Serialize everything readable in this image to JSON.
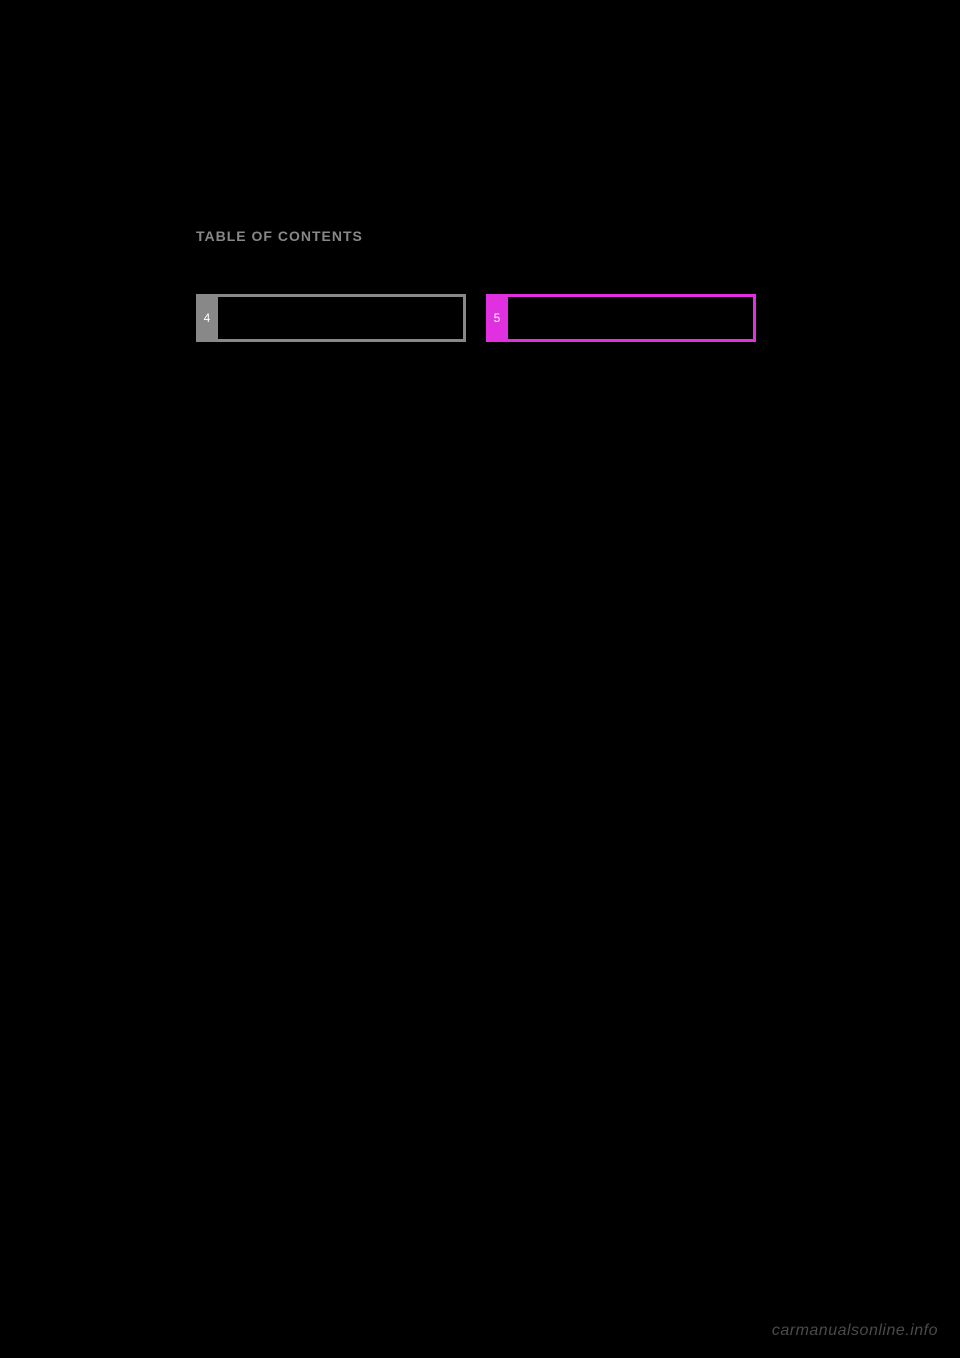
{
  "page": {
    "title": "TABLE OF CONTENTS",
    "background_color": "#000000",
    "title_color": "#888888",
    "title_fontsize": 14
  },
  "sections": [
    {
      "number": "4",
      "tab_color": "#888888",
      "border_color": "#888888",
      "text_color": "#ffffff"
    },
    {
      "number": "5",
      "tab_color": "#e030e0",
      "border_color": "#e030e0",
      "text_color": "#ffffff"
    }
  ],
  "watermark": {
    "text": "carmanualsonline.info",
    "color": "#4a4a4a",
    "fontsize": 16
  }
}
